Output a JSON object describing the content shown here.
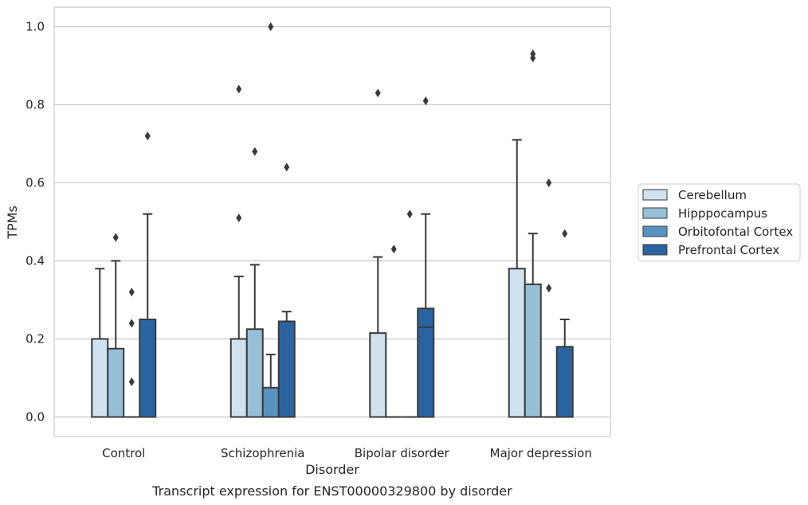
{
  "chart_data": {
    "type": "boxplot",
    "title": "",
    "caption": "Transcript expression for ENST00000329800 by disorder",
    "xlabel": "Disorder",
    "ylabel": "TPMs",
    "ylim": [
      -0.05,
      1.05
    ],
    "yticks": [
      0.0,
      0.2,
      0.4,
      0.6,
      0.8,
      1.0
    ],
    "ytick_labels": [
      "0.0",
      "0.2",
      "0.4",
      "0.6",
      "0.8",
      "1.0"
    ],
    "grid": true,
    "legend_position": "right",
    "categories": [
      "Control",
      "Schizophrenia",
      "Bipolar disorder",
      "Major depression"
    ],
    "series": [
      {
        "name": "Cerebellum",
        "color": "#d0e1f0",
        "boxes": [
          {
            "q1": 0,
            "median": 0,
            "q3": 0.2,
            "whisker_low": 0,
            "whisker_high": 0.38,
            "outliers": []
          },
          {
            "q1": 0,
            "median": 0,
            "q3": 0.2,
            "whisker_low": 0,
            "whisker_high": 0.36,
            "outliers": [
              0.51,
              0.84
            ]
          },
          {
            "q1": 0,
            "median": 0,
            "q3": 0.215,
            "whisker_low": 0,
            "whisker_high": 0.41,
            "outliers": [
              0.83
            ]
          },
          {
            "q1": 0,
            "median": 0,
            "q3": 0.38,
            "whisker_low": 0,
            "whisker_high": 0.71,
            "outliers": []
          }
        ]
      },
      {
        "name": "Hipppocampus",
        "color": "#98bfd8",
        "boxes": [
          {
            "q1": 0,
            "median": 0,
            "q3": 0.175,
            "whisker_low": 0,
            "whisker_high": 0.4,
            "outliers": [
              0.46
            ]
          },
          {
            "q1": 0,
            "median": 0,
            "q3": 0.225,
            "whisker_low": 0,
            "whisker_high": 0.39,
            "outliers": [
              0.68
            ]
          },
          {
            "q1": 0,
            "median": 0,
            "q3": 0,
            "whisker_low": 0,
            "whisker_high": 0,
            "outliers": [
              0.43
            ]
          },
          {
            "q1": 0,
            "median": 0,
            "q3": 0.34,
            "whisker_low": 0,
            "whisker_high": 0.47,
            "outliers": [
              0.92,
              0.93
            ]
          }
        ]
      },
      {
        "name": "Orbitofontal Cortex",
        "color": "#5792c0",
        "boxes": [
          {
            "q1": 0,
            "median": 0,
            "q3": 0,
            "whisker_low": 0,
            "whisker_high": 0,
            "outliers": [
              0.09,
              0.24,
              0.32
            ]
          },
          {
            "q1": 0,
            "median": 0,
            "q3": 0.075,
            "whisker_low": 0,
            "whisker_high": 0.16,
            "outliers": [
              1.0
            ]
          },
          {
            "q1": 0,
            "median": 0,
            "q3": 0,
            "whisker_low": 0,
            "whisker_high": 0,
            "outliers": [
              0.52
            ]
          },
          {
            "q1": 0,
            "median": 0,
            "q3": 0,
            "whisker_low": 0,
            "whisker_high": 0,
            "outliers": [
              0.33,
              0.6
            ]
          }
        ]
      },
      {
        "name": "Prefrontal Cortex",
        "color": "#2a64a0",
        "boxes": [
          {
            "q1": 0,
            "median": 0,
            "q3": 0.25,
            "whisker_low": 0,
            "whisker_high": 0.52,
            "outliers": [
              0.72
            ]
          },
          {
            "q1": 0,
            "median": 0,
            "q3": 0.245,
            "whisker_low": 0,
            "whisker_high": 0.27,
            "outliers": [
              0.64
            ]
          },
          {
            "q1": 0,
            "median": 0.23,
            "q3": 0.278,
            "whisker_low": 0,
            "whisker_high": 0.52,
            "outliers": [
              0.81
            ]
          },
          {
            "q1": 0,
            "median": 0,
            "q3": 0.18,
            "whisker_low": 0,
            "whisker_high": 0.25,
            "outliers": [
              0.47
            ]
          }
        ]
      }
    ]
  }
}
